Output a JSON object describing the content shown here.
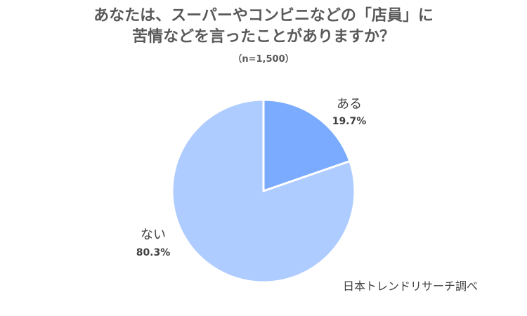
{
  "chart_data": {
    "type": "pie",
    "title_line1": "あなたは、スーパーやコンビニなどの「店員」に",
    "title_line2": "苦情などを言ったことがありますか？",
    "subtitle": "（n=1,500）",
    "slices": [
      {
        "label": "ある",
        "value": 19.7,
        "value_label": "19.7%",
        "color": "#7aabff"
      },
      {
        "label": "ない",
        "value": 80.3,
        "value_label": "80.3%",
        "color": "#aeccff"
      }
    ],
    "start": "12 o'clock",
    "direction": "clockwise",
    "legend": "none"
  },
  "source": "日本トレンドリサーチ調べ"
}
